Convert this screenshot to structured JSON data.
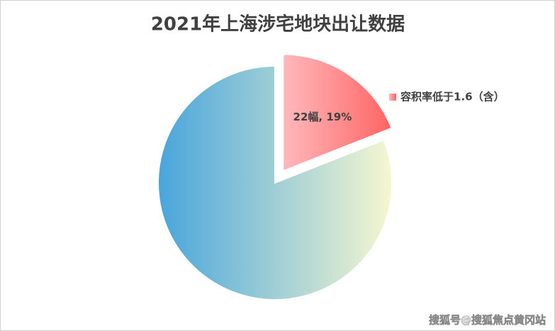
{
  "chart_data": {
    "type": "pie",
    "title": "2021年上海涉宅地块出让数据",
    "categories": [
      "容积率低于1.6（含）",
      null
    ],
    "values": [
      19,
      81
    ],
    "value_labels": [
      "22幅, 19%",
      null
    ],
    "colors": [
      [
        "#ffb9bd",
        "#ff6464"
      ],
      [
        "#48a5dc",
        "#f6f7d0"
      ]
    ],
    "legend": "right"
  },
  "watermark": "搜狐号@搜狐焦点黄冈站"
}
